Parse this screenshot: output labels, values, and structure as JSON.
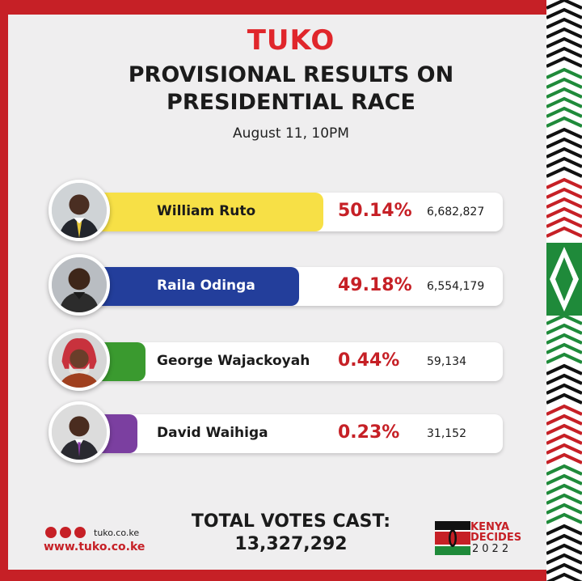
{
  "brand": {
    "logo_text": "TUKO",
    "accent_color": "#c62026"
  },
  "header": {
    "title_line1": "PROVISIONAL RESULTS ON",
    "title_line2": "PRESIDENTIAL RACE",
    "timestamp": "August 11, 10PM"
  },
  "candidates": [
    {
      "name": "William Ruto",
      "percent": "50.14%",
      "votes": "6,682,827",
      "bar_color": "#f7e046",
      "share": 50.14
    },
    {
      "name": "Raila Odinga",
      "percent": "49.18%",
      "votes": "6,554,179",
      "bar_color": "#233e9b",
      "share": 49.18
    },
    {
      "name": "George Wajackoyah",
      "percent": "0.44%",
      "votes": "59,134",
      "bar_color": "#3a9a2f",
      "share": 0.44
    },
    {
      "name": "David Waihiga",
      "percent": "0.23%",
      "votes": "31,152",
      "bar_color": "#7b3fa0",
      "share": 0.23
    }
  ],
  "footer": {
    "social_icons": [
      "facebook-icon",
      "instagram-icon",
      "twitter-icon"
    ],
    "social_handle": "tuko.co.ke",
    "website": "www.tuko.co.ke",
    "total_label": "TOTAL VOTES CAST:",
    "total_value": "13,327,292",
    "badge_line1": "KENYA",
    "badge_line2": "DECIDES",
    "badge_line3": "2022"
  }
}
